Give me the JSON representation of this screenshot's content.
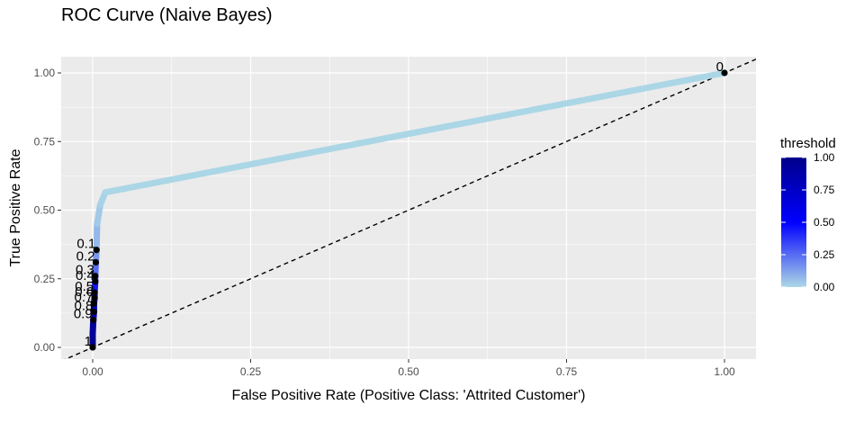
{
  "chart_data": {
    "type": "line",
    "title": "ROC Curve (Naive Bayes)",
    "xlabel": "False Positive Rate (Positive Class: 'Attrited Customer')",
    "ylabel": "True Positive Rate",
    "xlim": [
      0,
      1
    ],
    "ylim": [
      0,
      1
    ],
    "x_ticks": [
      0,
      0.25,
      0.5,
      0.75,
      1
    ],
    "x_tick_labels": [
      "0.00",
      "0.25",
      "0.50",
      "0.75",
      "1.00"
    ],
    "y_ticks": [
      0,
      0.25,
      0.5,
      0.75,
      1
    ],
    "y_tick_labels": [
      "0.00",
      "0.25",
      "0.50",
      "0.75",
      "1.00"
    ],
    "grid": true,
    "diagonal_reference": true,
    "curve": [
      {
        "x": 0.0,
        "y": 0.0,
        "threshold": 1.0
      },
      {
        "x": 0.0,
        "y": 0.05,
        "threshold": 0.95
      },
      {
        "x": 0.001,
        "y": 0.1,
        "threshold": 0.9
      },
      {
        "x": 0.002,
        "y": 0.13,
        "threshold": 0.8
      },
      {
        "x": 0.002,
        "y": 0.16,
        "threshold": 0.7
      },
      {
        "x": 0.003,
        "y": 0.18,
        "threshold": 0.6
      },
      {
        "x": 0.003,
        "y": 0.2,
        "threshold": 0.5
      },
      {
        "x": 0.004,
        "y": 0.24,
        "threshold": 0.4
      },
      {
        "x": 0.004,
        "y": 0.26,
        "threshold": 0.3
      },
      {
        "x": 0.005,
        "y": 0.31,
        "threshold": 0.2
      },
      {
        "x": 0.006,
        "y": 0.355,
        "threshold": 0.1
      },
      {
        "x": 0.007,
        "y": 0.45,
        "threshold": 0.05
      },
      {
        "x": 0.012,
        "y": 0.52,
        "threshold": 0.02
      },
      {
        "x": 0.02,
        "y": 0.565,
        "threshold": 0.01
      },
      {
        "x": 1.0,
        "y": 1.0,
        "threshold": 0.0
      }
    ],
    "threshold_points": [
      {
        "label": "0",
        "x": 1.0,
        "y": 1.0
      },
      {
        "label": "0.1",
        "x": 0.006,
        "y": 0.355
      },
      {
        "label": "0.2",
        "x": 0.005,
        "y": 0.31
      },
      {
        "label": "0.3",
        "x": 0.004,
        "y": 0.26
      },
      {
        "label": "0.4",
        "x": 0.004,
        "y": 0.24
      },
      {
        "label": "0.5",
        "x": 0.003,
        "y": 0.2
      },
      {
        "label": "0.6",
        "x": 0.003,
        "y": 0.18
      },
      {
        "label": "0.7",
        "x": 0.002,
        "y": 0.16
      },
      {
        "label": "0.8",
        "x": 0.002,
        "y": 0.13
      },
      {
        "label": "0.9",
        "x": 0.001,
        "y": 0.1
      },
      {
        "label": "1",
        "x": 0.0,
        "y": 0.0
      }
    ],
    "legend": {
      "title": "threshold",
      "position": "right",
      "ticks": [
        1.0,
        0.75,
        0.5,
        0.25,
        0.0
      ],
      "tick_labels": [
        "1.00",
        "0.75",
        "0.50",
        "0.25",
        "0.00"
      ],
      "color_low": "#add8e6",
      "color_mid": "#0000ff",
      "color_high": "#00008b"
    },
    "colors": {
      "panel_bg": "#ebebeb",
      "grid": "#ffffff",
      "point": "#000000",
      "diagonal": "#000000"
    }
  }
}
